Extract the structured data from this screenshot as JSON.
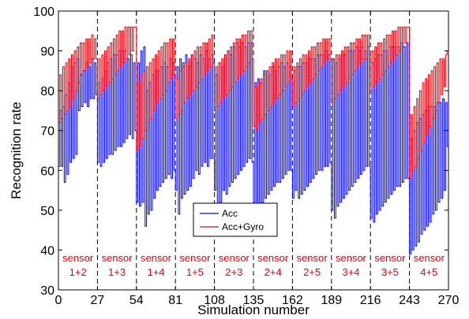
{
  "chart_data": {
    "type": "line",
    "title": "",
    "xlabel": "Simulation number",
    "ylabel": "Recognition rate",
    "xlim": [
      0,
      270
    ],
    "ylim": [
      30,
      100
    ],
    "x_ticks": [
      0,
      27,
      54,
      81,
      108,
      135,
      162,
      189,
      216,
      243,
      270
    ],
    "y_ticks": [
      30,
      40,
      50,
      60,
      70,
      80,
      90,
      100
    ],
    "grid": false,
    "legend": {
      "placement": "bottom-center"
    },
    "separators": [
      27,
      54,
      81,
      108,
      135,
      162,
      189,
      216,
      243
    ],
    "groups": [
      {
        "line1": "sensor",
        "line2": "1+2",
        "x_center": 13.5
      },
      {
        "line1": "sensor",
        "line2": "1+3",
        "x_center": 40.5
      },
      {
        "line1": "sensor",
        "line2": "1+4",
        "x_center": 67.5
      },
      {
        "line1": "sensor",
        "line2": "1+5",
        "x_center": 94.5
      },
      {
        "line1": "sensor",
        "line2": "2+3",
        "x_center": 121.5
      },
      {
        "line1": "sensor",
        "line2": "2+4",
        "x_center": 148.5
      },
      {
        "line1": "sensor",
        "line2": "2+5",
        "x_center": 175.5
      },
      {
        "line1": "sensor",
        "line2": "3+4",
        "x_center": 202.5
      },
      {
        "line1": "sensor",
        "line2": "3+5",
        "x_center": 229.5
      },
      {
        "line1": "sensor",
        "line2": "4+5",
        "x_center": 256.5
      }
    ],
    "series": [
      {
        "name": "Acc",
        "color": "#0000ff",
        "values": [
          [
            61,
            75,
            61,
            76,
            57,
            79,
            59,
            82,
            62,
            86,
            63,
            87,
            64,
            88,
            75,
            84,
            76,
            85,
            77,
            87,
            76,
            86,
            78,
            88,
            78,
            87,
            79
          ],
          [
            62,
            82,
            61,
            83,
            62,
            85,
            63,
            87,
            64,
            88,
            64,
            89,
            65,
            89,
            66,
            90,
            66,
            90,
            67,
            90,
            68,
            88,
            69,
            89,
            68,
            87,
            70
          ],
          [
            52,
            87,
            51,
            90,
            52,
            91,
            46,
            80,
            49,
            82,
            50,
            84,
            53,
            85,
            55,
            85,
            56,
            86,
            57,
            87,
            58,
            86,
            59,
            88,
            58,
            87,
            60
          ],
          [
            55,
            86,
            49,
            88,
            53,
            87,
            54,
            89,
            55,
            86,
            56,
            89,
            58,
            88,
            60,
            87,
            59,
            89,
            61,
            88,
            62,
            90,
            61,
            88,
            63,
            89,
            63
          ],
          [
            55,
            84,
            51,
            87,
            52,
            86,
            55,
            89,
            54,
            90,
            56,
            89,
            57,
            91,
            58,
            92,
            59,
            91,
            60,
            92,
            61,
            91,
            62,
            92,
            63,
            92,
            62
          ],
          [
            52,
            82,
            51,
            83,
            49,
            82,
            52,
            85,
            53,
            85,
            54,
            84,
            55,
            86,
            56,
            85,
            57,
            86,
            57,
            87,
            58,
            86,
            59,
            87,
            60,
            86,
            60
          ],
          [
            53,
            85,
            55,
            86,
            53,
            86,
            54,
            87,
            55,
            87,
            56,
            88,
            57,
            88,
            58,
            88,
            59,
            89,
            60,
            89,
            60,
            89,
            61,
            90,
            61,
            89,
            62
          ],
          [
            50,
            88,
            48,
            87,
            51,
            88,
            52,
            89,
            53,
            89,
            54,
            90,
            55,
            90,
            56,
            90,
            57,
            91,
            58,
            90,
            59,
            91,
            60,
            90,
            61,
            91,
            61
          ],
          [
            48,
            87,
            47,
            88,
            49,
            89,
            50,
            89,
            51,
            90,
            52,
            90,
            53,
            91,
            54,
            91,
            55,
            91,
            56,
            91,
            56,
            92,
            57,
            91,
            58,
            92,
            58
          ],
          [
            39,
            68,
            40,
            70,
            41,
            72,
            42,
            73,
            44,
            74,
            45,
            75,
            46,
            76,
            47,
            76,
            49,
            76,
            50,
            77,
            52,
            77,
            53,
            78,
            55,
            77,
            66
          ]
        ]
      },
      {
        "name": "Acc+Gyro",
        "color": "#e8000b",
        "values": [
          [
            72,
            84,
            73,
            86,
            74,
            87,
            75,
            88,
            76,
            89,
            78,
            90,
            80,
            91,
            82,
            92,
            84,
            92,
            85,
            93,
            86,
            93,
            87,
            94,
            88,
            93,
            88
          ],
          [
            78,
            88,
            79,
            89,
            80,
            90,
            81,
            91,
            82,
            92,
            83,
            93,
            84,
            94,
            85,
            95,
            86,
            95,
            87,
            96,
            88,
            96,
            89,
            96,
            90,
            96,
            96
          ],
          [
            65,
            82,
            66,
            84,
            68,
            85,
            70,
            86,
            72,
            87,
            73,
            88,
            75,
            89,
            77,
            90,
            78,
            91,
            79,
            92,
            80,
            92,
            82,
            93,
            83,
            93,
            84
          ],
          [
            73,
            83,
            74,
            85,
            75,
            86,
            77,
            87,
            78,
            88,
            79,
            89,
            80,
            90,
            81,
            91,
            82,
            91,
            83,
            92,
            84,
            92,
            85,
            93,
            86,
            94,
            87
          ],
          [
            75,
            86,
            76,
            87,
            77,
            88,
            78,
            89,
            79,
            90,
            80,
            91,
            81,
            92,
            82,
            93,
            83,
            93,
            84,
            94,
            85,
            94,
            86,
            95,
            87,
            95,
            88
          ],
          [
            71,
            81,
            70,
            82,
            72,
            83,
            73,
            84,
            74,
            85,
            75,
            86,
            76,
            87,
            77,
            88,
            78,
            88,
            79,
            89,
            80,
            89,
            81,
            90,
            82,
            90,
            83
          ],
          [
            76,
            86,
            77,
            87,
            78,
            88,
            79,
            89,
            80,
            89,
            81,
            90,
            82,
            91,
            83,
            91,
            84,
            92,
            85,
            92,
            86,
            93,
            87,
            93,
            88,
            93,
            88
          ],
          [
            77,
            88,
            78,
            89,
            79,
            89,
            80,
            90,
            81,
            91,
            82,
            91,
            83,
            92,
            84,
            92,
            85,
            93,
            86,
            93,
            87,
            94,
            88,
            94,
            88,
            94,
            89
          ],
          [
            80,
            90,
            81,
            91,
            82,
            92,
            83,
            92,
            84,
            93,
            85,
            94,
            86,
            94,
            87,
            95,
            88,
            95,
            89,
            96,
            90,
            96,
            91,
            96,
            92,
            96,
            96
          ],
          [
            58,
            74,
            60,
            76,
            61,
            78,
            63,
            80,
            65,
            82,
            67,
            83,
            69,
            84,
            71,
            85,
            73,
            86,
            75,
            87,
            77,
            88,
            79,
            88,
            81,
            89,
            90
          ]
        ]
      }
    ]
  }
}
